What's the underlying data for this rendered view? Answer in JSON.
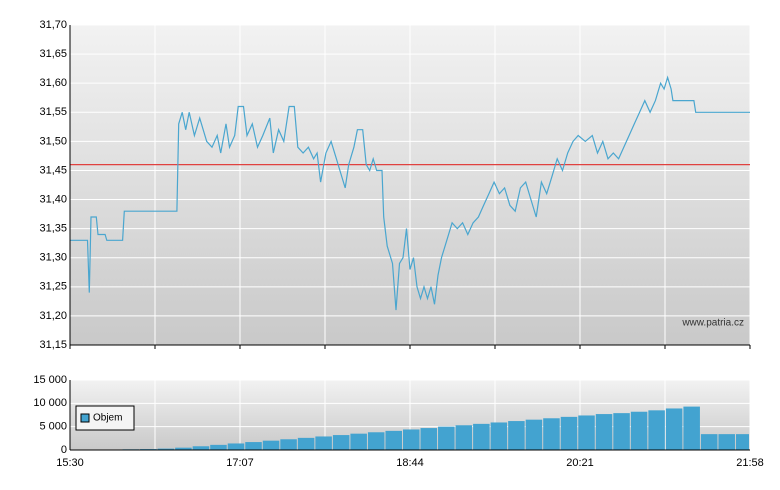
{
  "chart_data": [
    {
      "type": "line",
      "xlim": [
        "15:30",
        "21:58"
      ],
      "ylim": [
        31.15,
        31.7
      ],
      "yticks": [
        {
          "value": 31.15,
          "label": "31,15"
        },
        {
          "value": 31.2,
          "label": "31,20"
        },
        {
          "value": 31.25,
          "label": "31,25"
        },
        {
          "value": 31.3,
          "label": "31,30"
        },
        {
          "value": 31.35,
          "label": "31,35"
        },
        {
          "value": 31.4,
          "label": "31,40"
        },
        {
          "value": 31.45,
          "label": "31,45"
        },
        {
          "value": 31.5,
          "label": "31,50"
        },
        {
          "value": 31.55,
          "label": "31,55"
        },
        {
          "value": 31.6,
          "label": "31,60"
        },
        {
          "value": 31.65,
          "label": "31,65"
        },
        {
          "value": 31.7,
          "label": "31,70"
        }
      ],
      "grid": true,
      "reference_line": {
        "value": 31.46,
        "color": "#e0413f"
      },
      "annotation": "www.patria.cz",
      "series": [
        {
          "color": "#4aa6cf",
          "x": [
            "15:30",
            "15:40",
            "15:41",
            "15:42",
            "15:45",
            "15:46",
            "15:50",
            "15:51",
            "16:00",
            "16:01",
            "16:31",
            "16:32",
            "16:34",
            "16:36",
            "16:38",
            "16:41",
            "16:44",
            "16:48",
            "16:51",
            "16:54",
            "16:56",
            "16:59",
            "17:01",
            "17:04",
            "17:06",
            "17:09",
            "17:11",
            "17:14",
            "17:17",
            "17:20",
            "17:24",
            "17:26",
            "17:29",
            "17:32",
            "17:35",
            "17:38",
            "17:40",
            "17:43",
            "17:46",
            "17:49",
            "17:51",
            "17:53",
            "17:56",
            "17:59",
            "18:02",
            "18:04",
            "18:07",
            "18:09",
            "18:12",
            "18:14",
            "18:17",
            "18:19",
            "18:21",
            "18:23",
            "18:25",
            "18:28",
            "18:29",
            "18:31",
            "18:34",
            "18:36",
            "18:38",
            "18:40",
            "18:42",
            "18:44",
            "18:46",
            "18:48",
            "18:50",
            "18:52",
            "18:54",
            "18:56",
            "18:58",
            "19:00",
            "19:02",
            "19:05",
            "19:08",
            "19:11",
            "19:14",
            "19:17",
            "19:20",
            "19:23",
            "19:26",
            "19:29",
            "19:32",
            "19:35",
            "19:38",
            "19:41",
            "19:44",
            "19:47",
            "19:50",
            "19:53",
            "19:56",
            "19:59",
            "20:02",
            "20:05",
            "20:08",
            "20:11",
            "20:14",
            "20:17",
            "20:20",
            "20:24",
            "20:28",
            "20:31",
            "20:34",
            "20:37",
            "20:40",
            "20:43",
            "20:46",
            "20:49",
            "20:52",
            "20:55",
            "20:58",
            "21:01",
            "21:04",
            "21:07",
            "21:09",
            "21:11",
            "21:13",
            "21:14",
            "21:26",
            "21:27",
            "21:58"
          ],
          "values": [
            31.33,
            31.33,
            31.24,
            31.37,
            31.37,
            31.34,
            31.34,
            31.33,
            31.33,
            31.38,
            31.38,
            31.53,
            31.55,
            31.52,
            31.55,
            31.51,
            31.54,
            31.5,
            31.49,
            31.51,
            31.48,
            31.53,
            31.49,
            31.51,
            31.56,
            31.56,
            31.51,
            31.53,
            31.49,
            31.51,
            31.54,
            31.48,
            31.52,
            31.5,
            31.56,
            31.56,
            31.49,
            31.48,
            31.49,
            31.47,
            31.48,
            31.43,
            31.48,
            31.5,
            31.47,
            31.45,
            31.42,
            31.46,
            31.49,
            31.52,
            31.52,
            31.46,
            31.45,
            31.47,
            31.45,
            31.45,
            31.37,
            31.32,
            31.29,
            31.21,
            31.29,
            31.3,
            31.35,
            31.28,
            31.3,
            31.25,
            31.23,
            31.25,
            31.23,
            31.25,
            31.22,
            31.27,
            31.3,
            31.33,
            31.36,
            31.35,
            31.36,
            31.34,
            31.36,
            31.37,
            31.39,
            31.41,
            31.43,
            31.41,
            31.42,
            31.39,
            31.38,
            31.42,
            31.43,
            31.4,
            31.37,
            31.43,
            31.41,
            31.44,
            31.47,
            31.45,
            31.48,
            31.5,
            31.51,
            31.5,
            31.51,
            31.48,
            31.5,
            31.47,
            31.48,
            31.47,
            31.49,
            31.51,
            31.53,
            31.55,
            31.57,
            31.55,
            31.57,
            31.6,
            31.59,
            31.61,
            31.59,
            31.57,
            31.57,
            31.55,
            31.55
          ]
        }
      ]
    },
    {
      "type": "bar",
      "xlim": [
        "15:30",
        "21:58"
      ],
      "xticks": [
        "15:30",
        "17:07",
        "18:44",
        "20:21",
        "21:58"
      ],
      "ylim": [
        0,
        15000
      ],
      "yticks": [
        {
          "value": 0,
          "label": "0"
        },
        {
          "value": 5000,
          "label": "5 000"
        },
        {
          "value": 10000,
          "label": "10 000"
        },
        {
          "value": 15000,
          "label": "15 000"
        }
      ],
      "grid": true,
      "legend": "upper left",
      "series": [
        {
          "name": "Objem",
          "color": "#43a3d0",
          "x": [
            "15:30",
            "15:40",
            "15:50",
            "16:00",
            "16:10",
            "16:20",
            "16:30",
            "16:40",
            "16:50",
            "17:00",
            "17:10",
            "17:20",
            "17:30",
            "17:40",
            "17:50",
            "18:00",
            "18:10",
            "18:20",
            "18:30",
            "18:40",
            "18:50",
            "19:00",
            "19:10",
            "19:20",
            "19:30",
            "19:40",
            "19:50",
            "20:00",
            "20:10",
            "20:20",
            "20:30",
            "20:40",
            "20:50",
            "21:00",
            "21:10",
            "21:20",
            "21:30",
            "21:40",
            "21:50"
          ],
          "values": [
            0,
            0,
            100,
            150,
            200,
            300,
            500,
            800,
            1100,
            1400,
            1700,
            2000,
            2300,
            2600,
            2900,
            3200,
            3500,
            3800,
            4100,
            4400,
            4700,
            5000,
            5300,
            5600,
            5900,
            6200,
            6500,
            6800,
            7100,
            7400,
            7700,
            7900,
            8200,
            8500,
            8900,
            9300,
            3400,
            3400,
            3400
          ]
        }
      ]
    }
  ]
}
